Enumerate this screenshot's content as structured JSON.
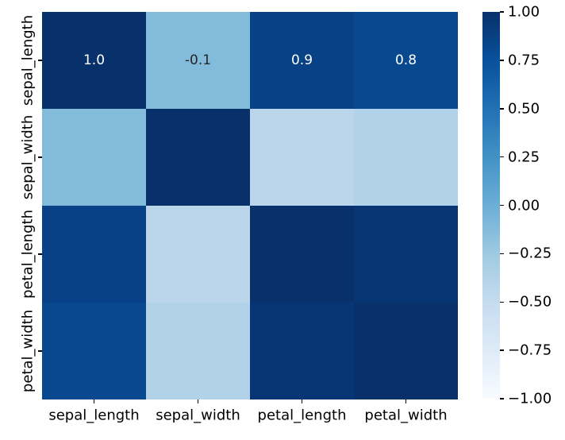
{
  "chart_data": {
    "type": "heatmap",
    "title": "",
    "x_categories": [
      "sepal_length",
      "sepal_width",
      "petal_length",
      "petal_width"
    ],
    "y_categories": [
      "sepal_length",
      "sepal_width",
      "petal_length",
      "petal_width"
    ],
    "matrix": [
      [
        1.0,
        -0.12,
        0.87,
        0.82
      ],
      [
        -0.12,
        1.0,
        -0.43,
        -0.37
      ],
      [
        0.87,
        -0.43,
        1.0,
        0.96
      ],
      [
        0.82,
        -0.37,
        0.96,
        1.0
      ]
    ],
    "cell_annotations": [
      [
        "1.0",
        "-0.1",
        "0.9",
        "0.8"
      ],
      [
        "",
        "",
        "",
        ""
      ],
      [
        "",
        "",
        "",
        ""
      ],
      [
        "",
        "",
        "",
        ""
      ]
    ],
    "colormap": "Blues",
    "vmin": -1,
    "vmax": 1,
    "colorbar_tick_labels": [
      "1.00",
      "0.75",
      "0.50",
      "0.25",
      "0.00",
      "−0.25",
      "−0.50",
      "−0.75",
      "−1.00"
    ],
    "legend_position": "right-colorbar",
    "grid": false
  },
  "colors": {
    "background": "#ffffff",
    "axis_tick": "#000000",
    "tick_label": "#000000",
    "cell_colors": [
      [
        "#08306b",
        "#83bbdb",
        "#084185",
        "#08488e"
      ],
      [
        "#83bbdb",
        "#08306b",
        "#bbd6eb",
        "#b1d2e8"
      ],
      [
        "#084185",
        "#bbd6eb",
        "#08306b",
        "#083573"
      ],
      [
        "#08488e",
        "#b1d2e8",
        "#083573",
        "#08306b"
      ]
    ],
    "annotation_colors": [
      [
        "#ffffff",
        "#262626",
        "#ffffff",
        "#ffffff"
      ],
      [
        "",
        "",
        "",
        ""
      ],
      [
        "",
        "",
        "",
        ""
      ],
      [
        "",
        "",
        "",
        ""
      ]
    ],
    "colorbar_gradient_top_to_bottom": [
      "#08306b",
      "#08519c",
      "#2171b5",
      "#4292c6",
      "#6baed6",
      "#9ecae1",
      "#c6dbef",
      "#deebf7",
      "#f7fbff"
    ]
  }
}
